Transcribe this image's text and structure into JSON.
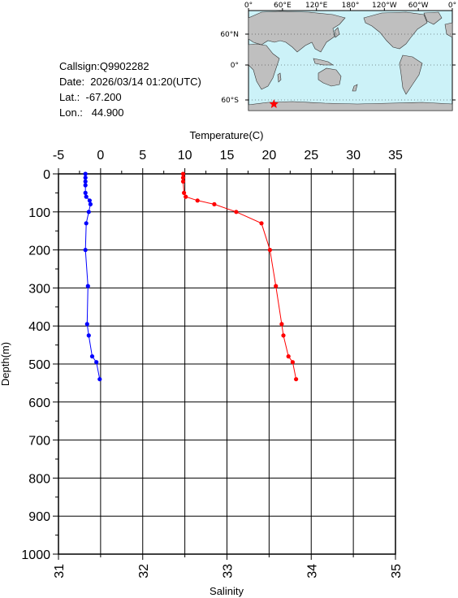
{
  "info": {
    "callsign": "Callsign:Q9902282",
    "date": "Date:  2026/03/14 01:20(UTC)",
    "lat": "Lat.:  -67.200",
    "lon": "Lon.:   44.900"
  },
  "map": {
    "lon_labels": [
      "0°",
      "60°E",
      "120°E",
      "180°",
      "120°W",
      "60°W",
      "0°"
    ],
    "lat_labels": [
      "60°N",
      "0°",
      "60°S"
    ],
    "ocean_color": "#ccf2f8",
    "land_color": "#bfbfbf",
    "station_marker": "star",
    "station_color": "#ff0000",
    "station_lon": 44.9,
    "station_lat": -67.2
  },
  "chart_data": {
    "type": "line",
    "title": "",
    "xlabel_top": "Temperature(C)",
    "xlabel_bottom": "Salinity",
    "ylabel": "Depth(m)",
    "temperature_ticks": [
      "-5",
      "0",
      "5",
      "10",
      "15",
      "20",
      "25",
      "30",
      "35"
    ],
    "temperature_range": [
      -5,
      35
    ],
    "salinity_ticks": [
      "31",
      "32",
      "33",
      "34",
      "35"
    ],
    "salinity_range": [
      31,
      35
    ],
    "depth_ticks": [
      "0",
      "100",
      "200",
      "300",
      "400",
      "500",
      "600",
      "700",
      "800",
      "900",
      "1000"
    ],
    "depth_range": [
      0,
      1000
    ],
    "grid": true,
    "series": [
      {
        "color": "#0000ff",
        "axis": "temperature",
        "points": [
          {
            "depth": 0,
            "value": -1.8
          },
          {
            "depth": 10,
            "value": -1.8
          },
          {
            "depth": 20,
            "value": -1.8
          },
          {
            "depth": 30,
            "value": -1.8
          },
          {
            "depth": 50,
            "value": -1.8
          },
          {
            "depth": 60,
            "value": -1.7
          },
          {
            "depth": 70,
            "value": -1.3
          },
          {
            "depth": 80,
            "value": -1.2
          },
          {
            "depth": 100,
            "value": -1.4
          },
          {
            "depth": 130,
            "value": -1.7
          },
          {
            "depth": 200,
            "value": -1.8
          },
          {
            "depth": 295,
            "value": -1.5
          },
          {
            "depth": 395,
            "value": -1.6
          },
          {
            "depth": 425,
            "value": -1.4
          },
          {
            "depth": 480,
            "value": -1.0
          },
          {
            "depth": 495,
            "value": -0.5
          },
          {
            "depth": 540,
            "value": -0.1
          }
        ]
      },
      {
        "color": "#ff0000",
        "axis": "salinity",
        "points": [
          {
            "depth": 0,
            "value": 32.48
          },
          {
            "depth": 10,
            "value": 32.48
          },
          {
            "depth": 20,
            "value": 32.48
          },
          {
            "depth": 50,
            "value": 32.49
          },
          {
            "depth": 60,
            "value": 32.51
          },
          {
            "depth": 70,
            "value": 32.65
          },
          {
            "depth": 80,
            "value": 32.85
          },
          {
            "depth": 100,
            "value": 33.11
          },
          {
            "depth": 130,
            "value": 33.41
          },
          {
            "depth": 200,
            "value": 33.51
          },
          {
            "depth": 295,
            "value": 33.58
          },
          {
            "depth": 395,
            "value": 33.65
          },
          {
            "depth": 425,
            "value": 33.67
          },
          {
            "depth": 480,
            "value": 33.73
          },
          {
            "depth": 495,
            "value": 33.78
          },
          {
            "depth": 540,
            "value": 33.82
          }
        ]
      }
    ]
  }
}
